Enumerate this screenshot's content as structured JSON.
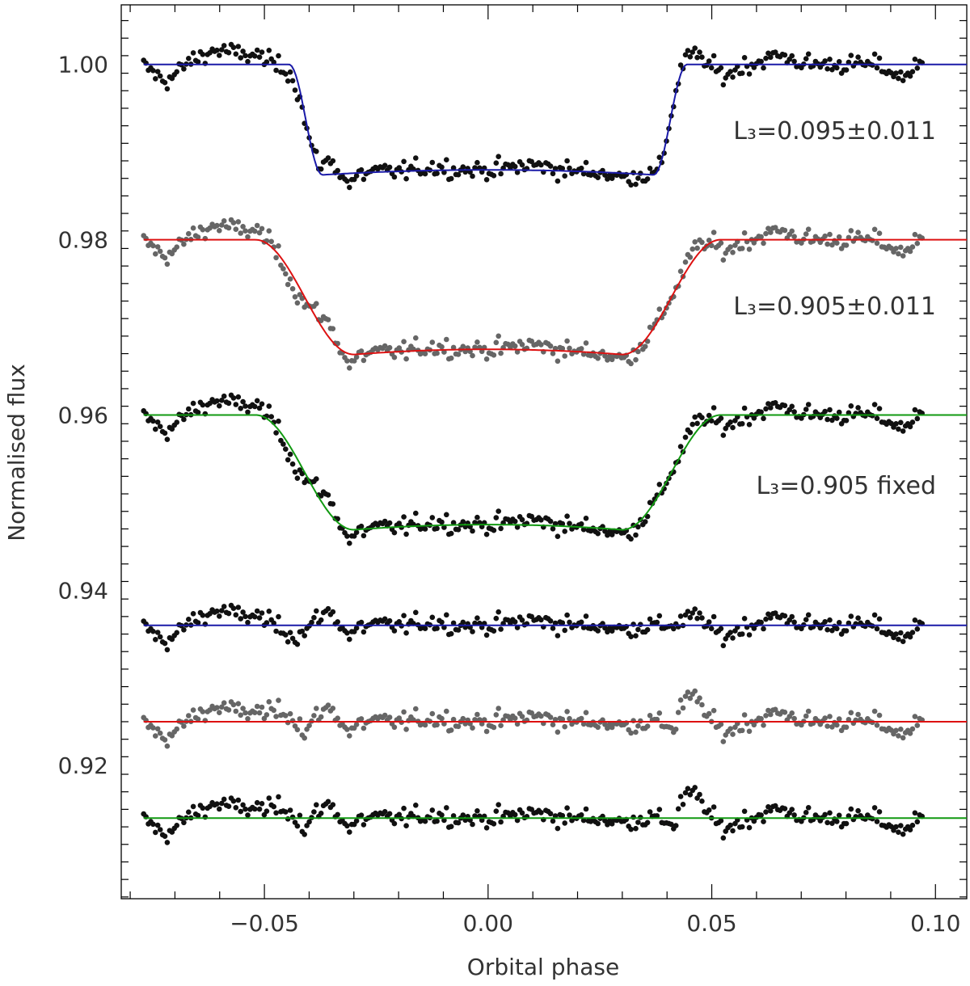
{
  "chart_data": {
    "type": "scatter",
    "title": "",
    "xlabel": "Orbital phase",
    "ylabel": "Normalised flux",
    "xlim": [
      -0.082,
      0.107
    ],
    "ylim": [
      0.9048,
      1.0068
    ],
    "xticks_major": [
      -0.05,
      0.0,
      0.05,
      0.1
    ],
    "xtick_labels": [
      "−0.05",
      "0.00",
      "0.05",
      "0.10"
    ],
    "yticks_major": [
      0.92,
      0.94,
      0.96,
      0.98,
      1.0
    ],
    "ytick_labels": [
      "0.92",
      "0.94",
      "0.96",
      "0.98",
      "1.00"
    ],
    "data_phase_range": [
      -0.077,
      0.097
    ],
    "model_phase_range": [
      -0.077,
      0.107
    ],
    "grid": false,
    "panels": [
      {
        "name": "light curve (L3 = 0.095)",
        "kind": "lightcurve",
        "offset": 1.0,
        "dot_color": "#111111",
        "line_color": "#1a1aa8",
        "depth": 0.0126,
        "t1": 0.0445,
        "t2": 0.037,
        "annotation": "L₃=0.095±0.011",
        "annot_y": 0.9915
      },
      {
        "name": "light curve (L3 = 0.905)",
        "kind": "lightcurve",
        "offset": 0.98,
        "dot_color": "#666666",
        "line_color": "#dd1111",
        "depth": 0.0131,
        "t1": 0.052,
        "t2": 0.03,
        "annotation": "L₃=0.905±0.011",
        "annot_y": 0.9715
      },
      {
        "name": "light curve (L3 = 0.905 fixed)",
        "kind": "lightcurve",
        "offset": 0.96,
        "dot_color": "#111111",
        "line_color": "#119911",
        "depth": 0.0131,
        "t1": 0.052,
        "t2": 0.03,
        "annotation": "L₃=0.905 fixed",
        "annot_y": 0.951
      },
      {
        "name": "residuals (L3 = 0.095)",
        "kind": "residual",
        "offset": 0.936,
        "dot_color": "#111111",
        "line_color": "#1a1aa8"
      },
      {
        "name": "residuals (L3 = 0.905)",
        "kind": "residual",
        "offset": 0.925,
        "dot_color": "#666666",
        "line_color": "#dd1111"
      },
      {
        "name": "residuals (L3 = 0.905 fixed)",
        "kind": "residual",
        "offset": 0.914,
        "dot_color": "#111111",
        "line_color": "#119911"
      }
    ],
    "n_points_per_series": 330
  }
}
